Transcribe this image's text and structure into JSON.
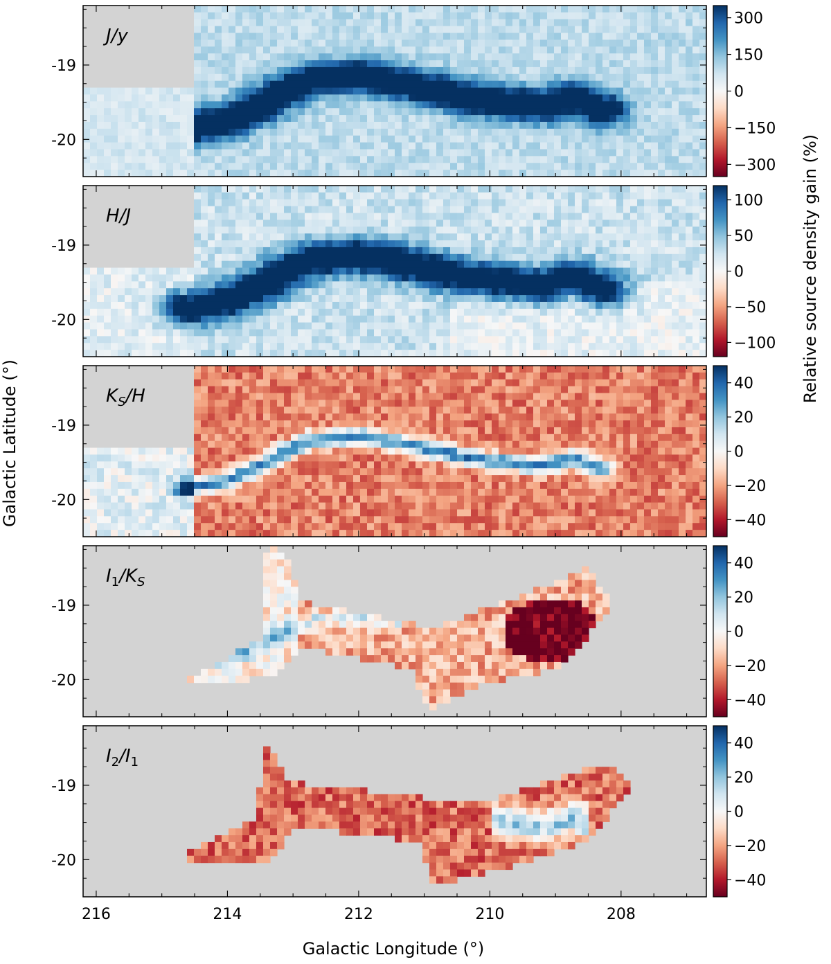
{
  "figure": {
    "xlabel": "Galactic Longitude (°)",
    "ylabel": "Galactic Latitude (°)",
    "colorbar_label": "Relative source density gain (%)"
  },
  "chart_data": [
    {
      "type": "heatmap",
      "panel_label": "J/y",
      "label_main": "J",
      "label_den": "y",
      "xlim": [
        216.2,
        206.7
      ],
      "ylim": [
        -20.5,
        -18.2
      ],
      "x_ticks": [
        216,
        214,
        212,
        210,
        208
      ],
      "y_ticks": [
        -19,
        -20
      ],
      "y_tick_labels": [
        "-19",
        "-20"
      ],
      "colorbar": {
        "vmin": -350,
        "vmax": 350,
        "ticks": [
          300,
          150,
          0,
          -150,
          -300
        ],
        "tick_labels": [
          "300",
          "150",
          "0",
          "−150",
          "−300"
        ]
      },
      "missing_region": {
        "l": [
          216.2,
          214.5
        ],
        "b": [
          -19.3,
          -18.2
        ]
      },
      "filament_gain": 280,
      "background_gain": 90,
      "colormap": "RdBu"
    },
    {
      "type": "heatmap",
      "panel_label": "H/J",
      "label_main": "H",
      "label_den": "J",
      "xlim": [
        216.2,
        206.7
      ],
      "ylim": [
        -20.5,
        -18.2
      ],
      "x_ticks": [
        216,
        214,
        212,
        210,
        208
      ],
      "y_ticks": [
        -19,
        -20
      ],
      "y_tick_labels": [
        "-19",
        "-20"
      ],
      "colorbar": {
        "vmin": -120,
        "vmax": 120,
        "ticks": [
          100,
          50,
          0,
          -50,
          -100
        ],
        "tick_labels": [
          "100",
          "50",
          "0",
          "−50",
          "−100"
        ]
      },
      "missing_region": {
        "l": [
          216.2,
          214.5
        ],
        "b": [
          -19.3,
          -18.2
        ]
      },
      "filament_gain": 110,
      "background_gain": 25,
      "colormap": "RdBu"
    },
    {
      "type": "heatmap",
      "panel_label": "KS/H",
      "label_main": "K",
      "label_main_sub": "S",
      "label_den": "H",
      "xlim": [
        216.2,
        206.7
      ],
      "ylim": [
        -20.5,
        -18.2
      ],
      "x_ticks": [
        216,
        214,
        212,
        210,
        208
      ],
      "y_ticks": [
        -19,
        -20
      ],
      "y_tick_labels": [
        "-19",
        "-20"
      ],
      "colorbar": {
        "vmin": -50,
        "vmax": 50,
        "ticks": [
          40,
          20,
          0,
          -20,
          -40
        ],
        "tick_labels": [
          "40",
          "20",
          "0",
          "−20",
          "−40"
        ]
      },
      "missing_region": {
        "l": [
          216.2,
          214.5
        ],
        "b": [
          -19.3,
          -18.2
        ]
      },
      "filament_gain": 30,
      "background_gain": -25,
      "colormap": "RdBu"
    },
    {
      "type": "heatmap",
      "panel_label": "I1/KS",
      "label_main": "I",
      "label_main_sub": "1",
      "label_den": "K",
      "label_den_sub": "S",
      "xlim": [
        216.2,
        206.7
      ],
      "ylim": [
        -20.5,
        -18.2
      ],
      "x_ticks": [
        216,
        214,
        212,
        210,
        208
      ],
      "y_ticks": [
        -19,
        -20
      ],
      "y_tick_labels": [
        "-19",
        "-20"
      ],
      "colorbar": {
        "vmin": -50,
        "vmax": 50,
        "ticks": [
          40,
          20,
          0,
          -20,
          -40
        ],
        "tick_labels": [
          "40",
          "20",
          "0",
          "−20",
          "−40"
        ]
      },
      "coverage_polygon": [
        [
          214.6,
          -20.0
        ],
        [
          213.5,
          -19.45
        ],
        [
          213.4,
          -18.3
        ],
        [
          213.25,
          -18.2
        ],
        [
          213.05,
          -18.45
        ],
        [
          212.9,
          -18.95
        ],
        [
          210.85,
          -19.3
        ],
        [
          209.0,
          -18.7
        ],
        [
          208.55,
          -18.5
        ],
        [
          208.1,
          -18.95
        ],
        [
          208.9,
          -19.85
        ],
        [
          210.1,
          -20.05
        ],
        [
          210.95,
          -20.4
        ],
        [
          211.2,
          -19.85
        ],
        [
          212.9,
          -19.55
        ],
        [
          213.3,
          -19.95
        ],
        [
          214.2,
          -20.05
        ]
      ],
      "colormap": "RdBu"
    },
    {
      "type": "heatmap",
      "panel_label": "I2/I1",
      "label_main": "I",
      "label_main_sub": "2",
      "label_den": "I",
      "label_den_sub": "1",
      "xlim": [
        216.2,
        206.7
      ],
      "ylim": [
        -20.5,
        -18.2
      ],
      "x_ticks": [
        216,
        214,
        212,
        210,
        208
      ],
      "y_ticks": [
        -19,
        -20
      ],
      "y_tick_labels": [
        "-19",
        "-20"
      ],
      "colorbar": {
        "vmin": -50,
        "vmax": 50,
        "ticks": [
          40,
          20,
          0,
          -20,
          -40
        ],
        "tick_labels": [
          "40",
          "20",
          "0",
          "−20",
          "−40"
        ]
      },
      "coverage_polygon": [
        [
          214.7,
          -19.95
        ],
        [
          213.55,
          -19.45
        ],
        [
          213.45,
          -18.45
        ],
        [
          213.25,
          -18.6
        ],
        [
          213.1,
          -18.95
        ],
        [
          210.15,
          -19.25
        ],
        [
          208.3,
          -18.7
        ],
        [
          207.8,
          -18.95
        ],
        [
          208.5,
          -19.75
        ],
        [
          209.55,
          -20.05
        ],
        [
          210.85,
          -20.35
        ],
        [
          211.1,
          -19.75
        ],
        [
          213.0,
          -19.55
        ],
        [
          213.35,
          -20.05
        ],
        [
          214.6,
          -20.05
        ]
      ],
      "colormap": "RdBu"
    }
  ]
}
